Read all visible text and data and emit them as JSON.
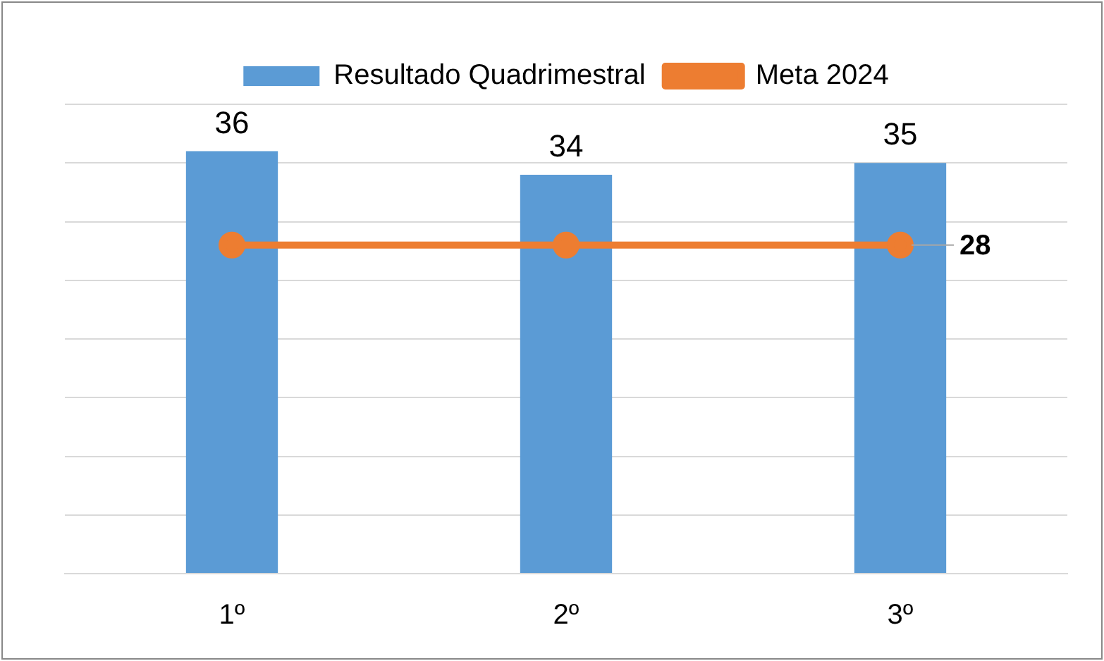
{
  "chart_data": {
    "type": "bar",
    "categories": [
      "1º",
      "2º",
      "3º"
    ],
    "series": [
      {
        "name": "Resultado Quadrimestral",
        "color": "#5b9bd5",
        "values": [
          36,
          34,
          35
        ],
        "value_labels": [
          "36",
          "34",
          "35"
        ]
      },
      {
        "name": "Meta 2024",
        "type": "line",
        "color": "#ed7d31",
        "values": [
          28,
          28,
          28
        ],
        "value_labels": [
          null,
          null,
          "28"
        ]
      }
    ],
    "ylim": [
      0,
      40
    ],
    "yticks": [
      {
        "value": 0,
        "label": null
      },
      {
        "value": 5,
        "label": null
      },
      {
        "value": 10,
        "label": null
      },
      {
        "value": 15,
        "label": null
      },
      {
        "value": 20,
        "label": null
      },
      {
        "value": 25,
        "label": null
      },
      {
        "value": 30,
        "label": null
      },
      {
        "value": 35,
        "label": null
      },
      {
        "value": 40,
        "label": null
      }
    ],
    "tick_labels": "x",
    "grid": "y",
    "legend": "top",
    "marker": "circle"
  }
}
